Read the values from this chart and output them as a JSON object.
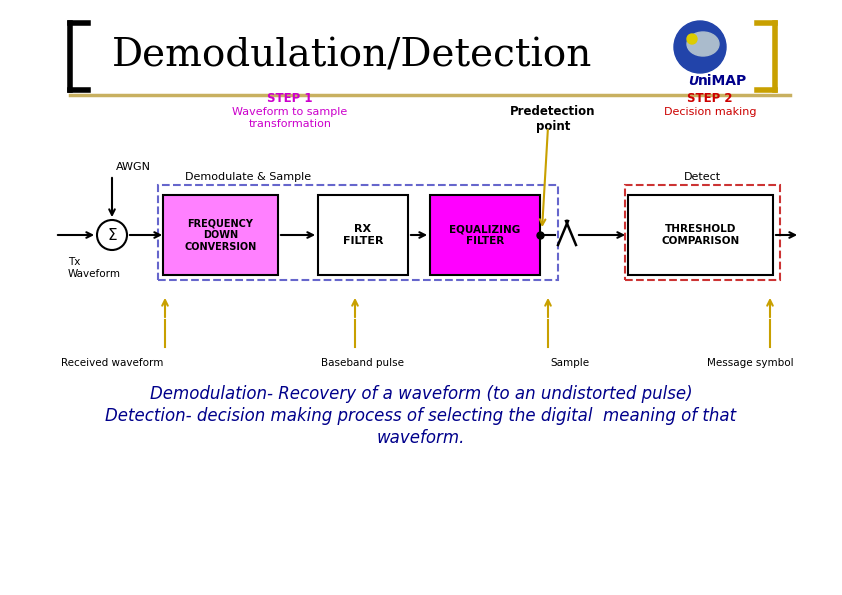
{
  "title": "Demodulation/Detection",
  "bg_color": "#ffffff",
  "title_color": "#000000",
  "title_fontsize": 28,
  "bracket_color": "#000000",
  "gold_bracket_color": "#c8a000",
  "step1_label": "STEP 1",
  "step1_sub": "Waveform to sample\ntransformation",
  "step2_label": "STEP 2",
  "step2_sub": "Decision making",
  "predetection_label": "Predetection\npoint",
  "demodulate_label": "Demodulate & Sample",
  "detect_label": "Detect",
  "awgn_label": "AWGN",
  "tx_label": "Tx\nWaveform",
  "sigma_label": "Σ",
  "box1_label": "FREQUENCY\nDOWN\nCONVERSION",
  "box2_label": "RX\nFILTER",
  "box3_label": "EQUALIZING\nFILTER",
  "box4_label": "THRESHOLD\nCOMPARISON",
  "box1_color": "#ff80ff",
  "box2_color": "#ffffff",
  "box3_color": "#ff00ff",
  "box4_color": "#ffffff",
  "received_label": "Received waveform",
  "baseband_label": "Baseband pulse",
  "sample_label": "Sample",
  "message_label": "Message symbol",
  "bottom_text_line1": "Demodulation- Recovery of a waveform (to an undistorted pulse)",
  "bottom_text_line2": "Detection- decision making process of selecting the digital  meaning of that",
  "bottom_text_line3": "waveform.",
  "bottom_text_color": "#00008b",
  "step1_color": "#cc00cc",
  "step2_color": "#cc0000",
  "arrow_color": "#c8a000",
  "dashed_box1_color": "#6666cc",
  "dashed_box2_color": "#cc3333",
  "line_color": "#c8b060",
  "unimap_u_color": "#00008b",
  "unimap_map_color": "#00008b"
}
